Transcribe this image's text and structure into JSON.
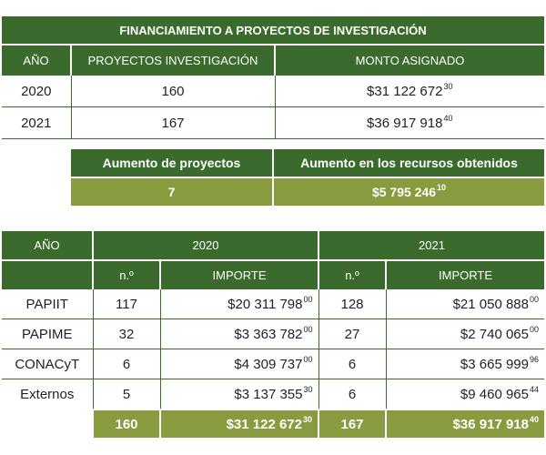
{
  "table1": {
    "title": "FINANCIAMIENTO A PROYECTOS DE INVESTIGACIÓN",
    "headers": [
      "AÑO",
      "PROYECTOS INVESTIGACIÓN",
      "MONTO ASIGNADO"
    ],
    "rows": [
      {
        "year": "2020",
        "projects": "160",
        "amount": "$31 122 672",
        "cents": "30"
      },
      {
        "year": "2021",
        "projects": "167",
        "amount": "$36 917 918",
        "cents": "40"
      }
    ]
  },
  "table2": {
    "headers": [
      "Aumento de proyectos",
      "Aumento en los recursos obtenidos"
    ],
    "projects_increase": "7",
    "resources_increase": "$5 795 246",
    "resources_cents": "10"
  },
  "table3": {
    "year_header": "AÑO",
    "years": [
      "2020",
      "2021"
    ],
    "col_n": "n.º",
    "col_importe": "IMPORTE",
    "rows": [
      {
        "name": "PAPIIT",
        "n2020": "117",
        "amt2020": "$20 311 798",
        "c2020": "00",
        "n2021": "128",
        "amt2021": "$21 050 888",
        "c2021": "00"
      },
      {
        "name": "PAPIME",
        "n2020": "32",
        "amt2020": "$3 363 782",
        "c2020": "00",
        "n2021": "27",
        "amt2021": "$2 740 065",
        "c2021": "00"
      },
      {
        "name": "CONACyT",
        "n2020": "6",
        "amt2020": "$4 309 737",
        "c2020": "00",
        "n2021": "6",
        "amt2021": "$3 665 999",
        "c2021": "96"
      },
      {
        "name": "Externos",
        "n2020": "5",
        "amt2020": "$3 137 355",
        "c2020": "30",
        "n2021": "6",
        "amt2021": "$9 460 965",
        "c2021": "44"
      }
    ],
    "total": {
      "n2020": "160",
      "amt2020": "$31 122 672",
      "c2020": "30",
      "n2021": "167",
      "amt2021": "$36 917 918",
      "c2021": "40"
    }
  }
}
